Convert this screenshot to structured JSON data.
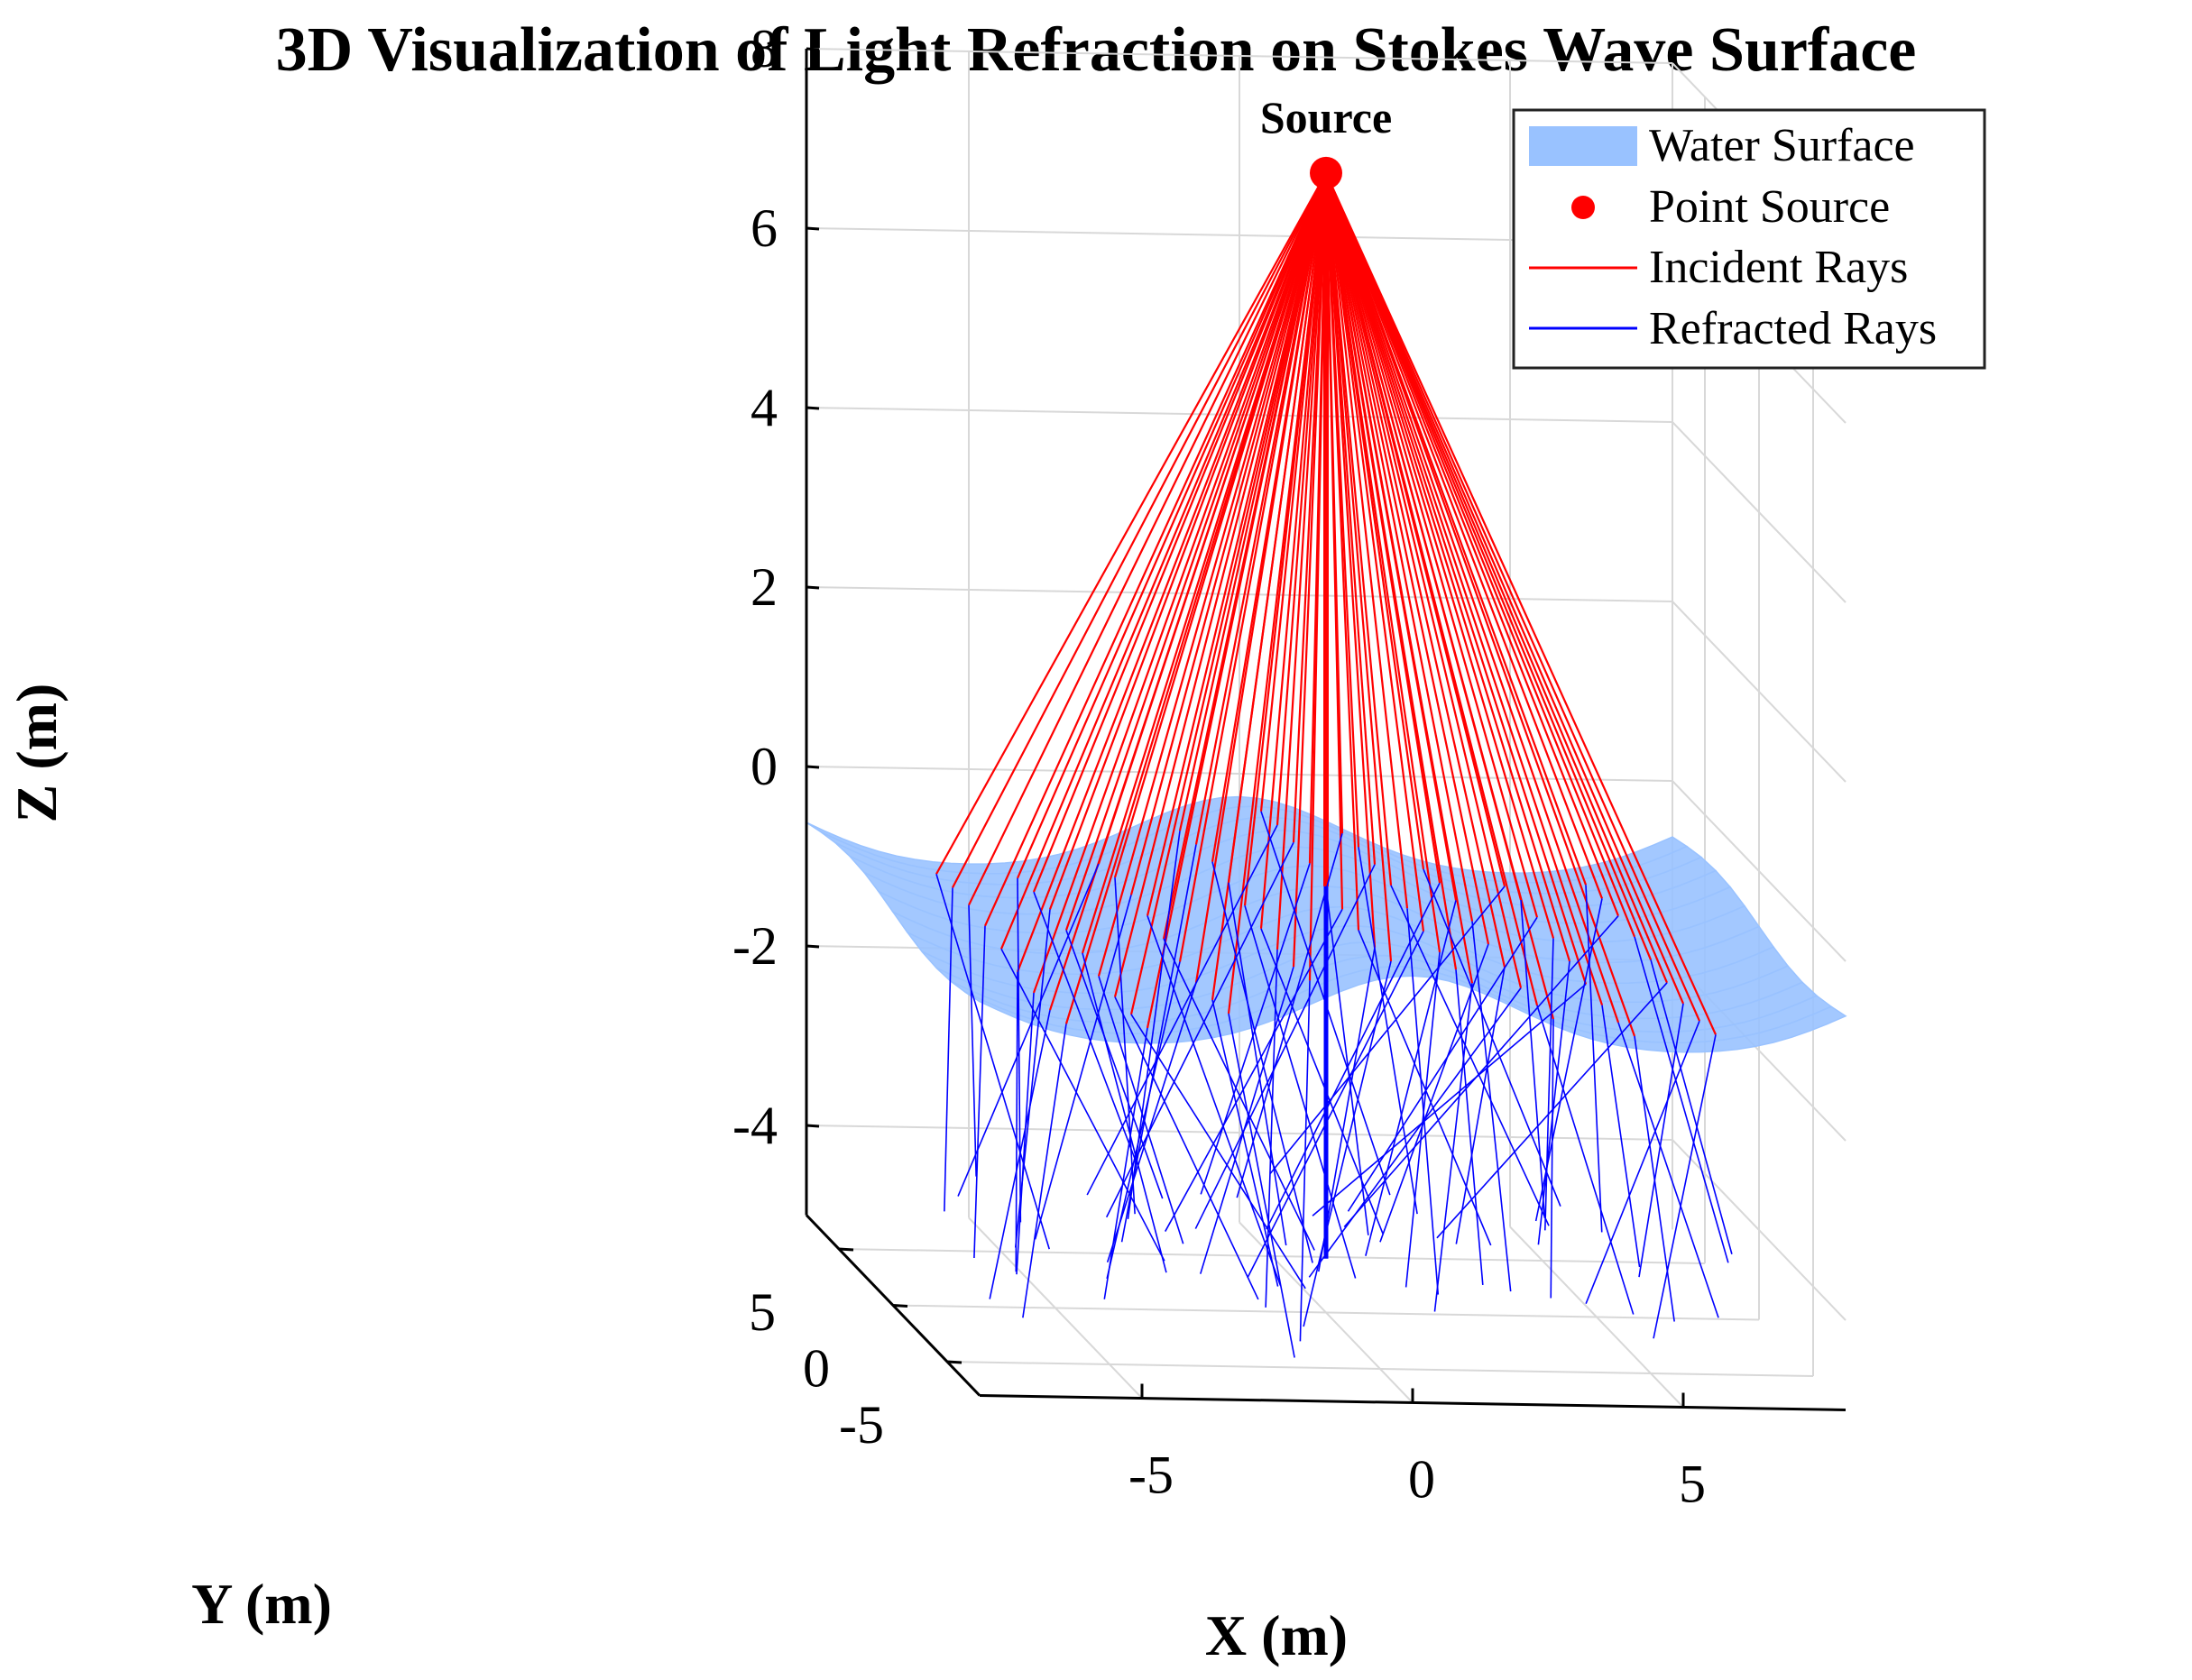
{
  "chart_data": {
    "type": "3d-line",
    "title": "3D Visualization of Light Refraction on Stokes Wave Surface",
    "xlabel": "X (m)",
    "ylabel": "Y (m)",
    "zlabel": "Z (m)",
    "xlim": [
      -8,
      8
    ],
    "ylim": [
      -8,
      8
    ],
    "zlim": [
      -5,
      8
    ],
    "x_ticks": [
      "-5",
      "0",
      "5"
    ],
    "y_ticks": [
      "-5",
      "0",
      "5"
    ],
    "z_ticks": [
      "8",
      "6",
      "4",
      "2",
      "0",
      "-2",
      "-4"
    ],
    "grid": true,
    "legend_position": "top-right",
    "legend": [
      {
        "label": "Water Surface",
        "type": "patch",
        "color": "#99c2ff"
      },
      {
        "label": "Point Source",
        "type": "marker",
        "color": "#ff0000"
      },
      {
        "label": "Incident Rays",
        "type": "line",
        "color": "#ff0000"
      },
      {
        "label": "Refracted Rays",
        "type": "line",
        "color": "#0000ff"
      }
    ],
    "annotation": "Source",
    "source": {
      "x": 0,
      "y": 0,
      "z": 7.7
    },
    "wave": {
      "amplitude": 0.4,
      "wavelength": 10,
      "mean_level": -0.7
    },
    "rays": {
      "grid_size": 9,
      "extent": 6,
      "refracted_depth": -4.4
    }
  }
}
